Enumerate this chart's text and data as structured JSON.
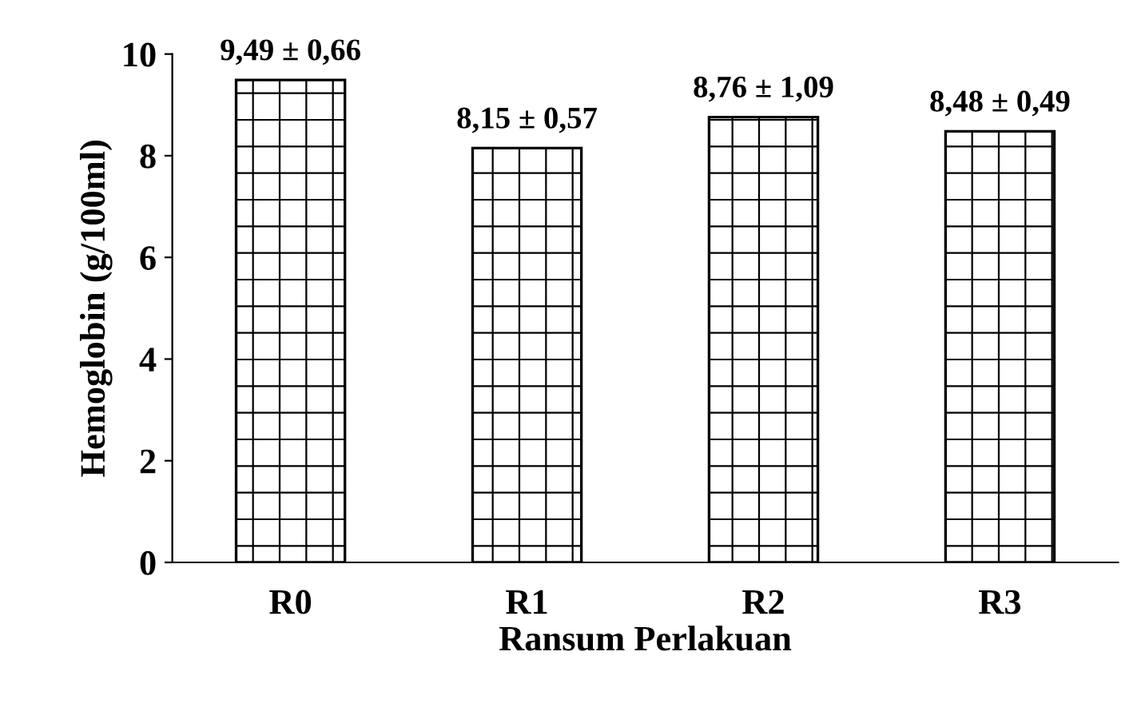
{
  "chart_data": {
    "type": "bar",
    "xlabel": "Ransum Perlakuan",
    "ylabel": "Hemoglobin (g/100ml)",
    "categories": [
      "R0",
      "R1",
      "R2",
      "R3"
    ],
    "values": [
      9.49,
      8.15,
      8.76,
      8.48
    ],
    "value_labels": [
      "9,49 ± 0,66",
      "8,15 ± 0,57",
      "8,76 ± 1,09",
      "8,48 ± 0,49"
    ],
    "color": "#000000",
    "ylim": [
      0,
      10
    ],
    "yticks": [
      0,
      2,
      4,
      6,
      8,
      10
    ],
    "grid": false,
    "legend": false
  }
}
